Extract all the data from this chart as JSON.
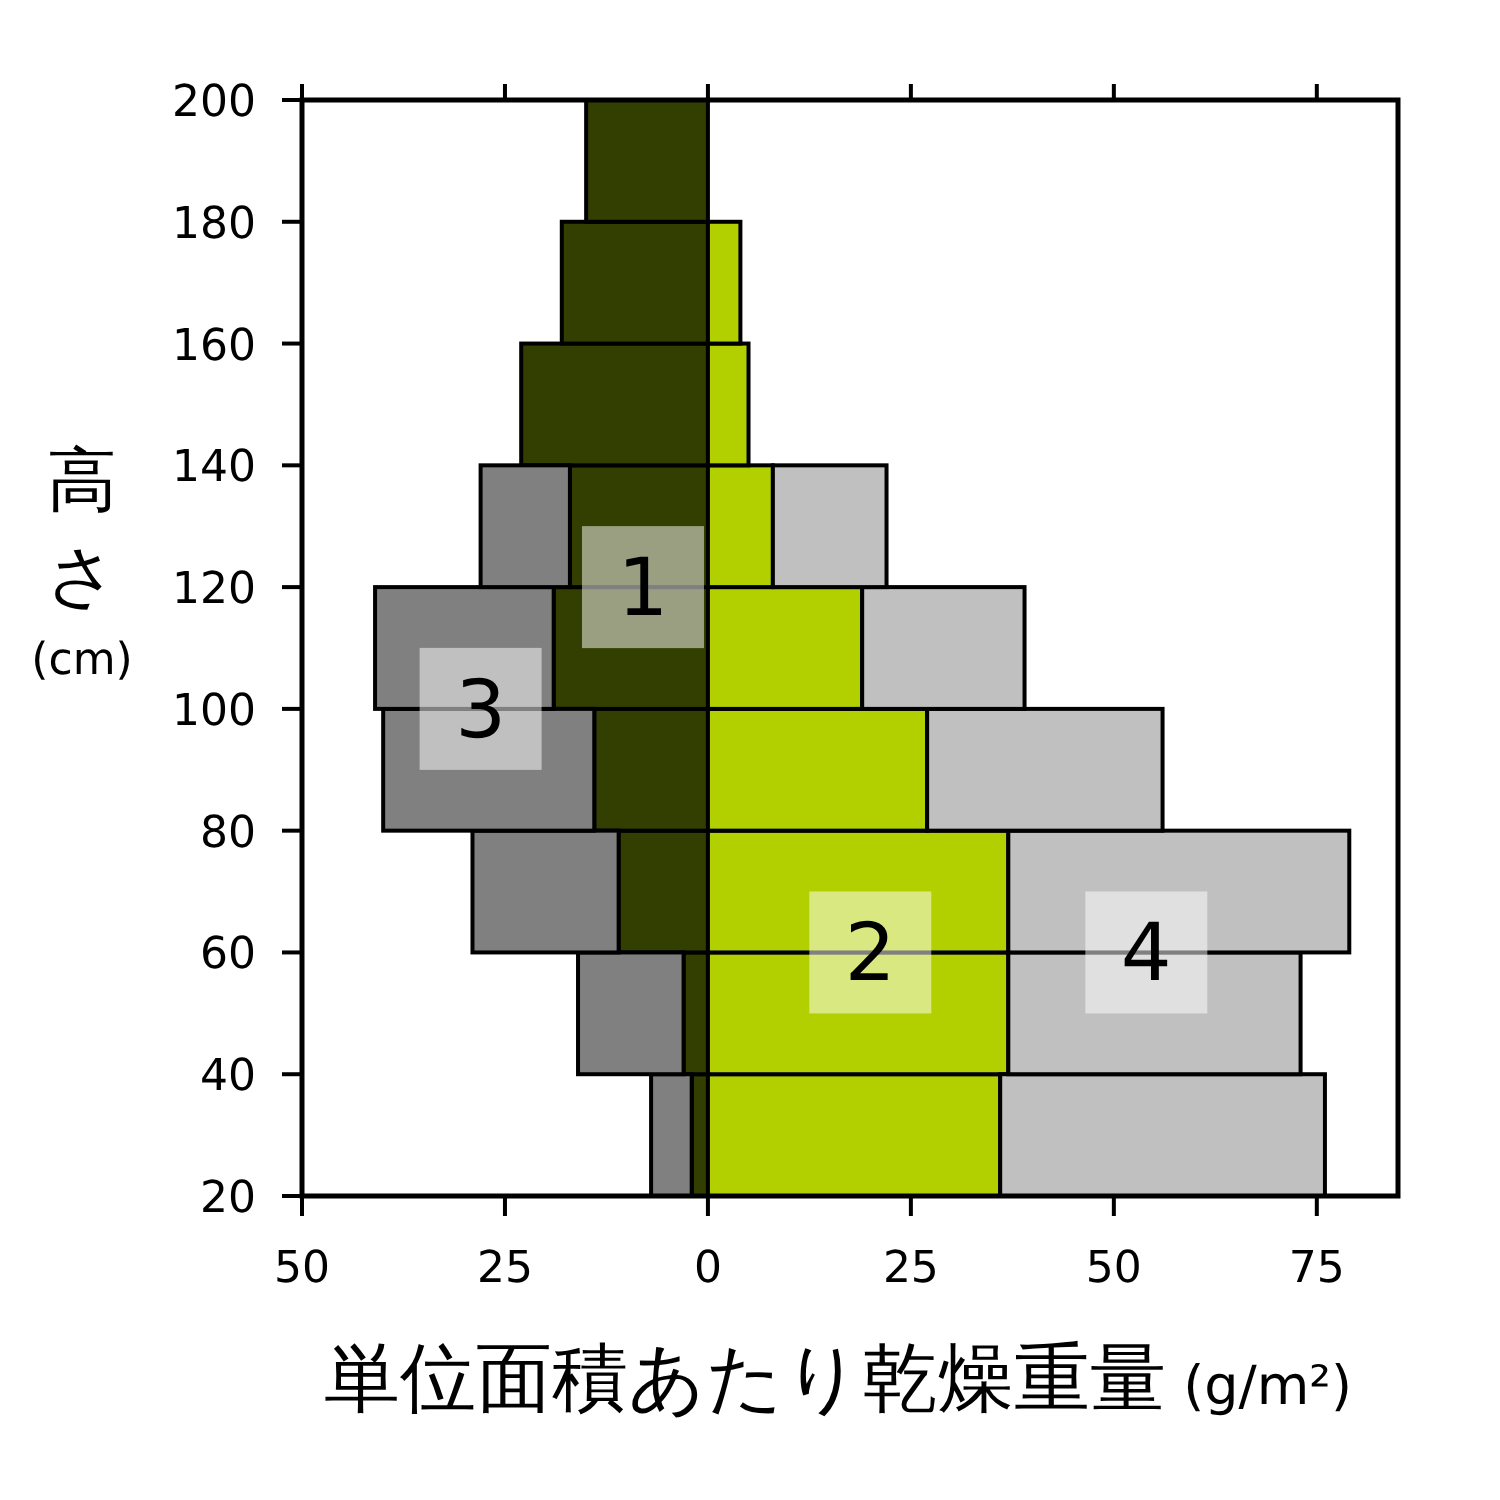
{
  "chart_data": {
    "type": "bar",
    "orientation": "horizontal",
    "stacked": true,
    "xlabel": "単位面積あたり乾燥重量 (g/m²)",
    "ylabel": "高さ (cm)",
    "x": [
      30,
      50,
      70,
      90,
      110,
      130,
      150,
      170,
      190
    ],
    "series": [
      {
        "color": "#333f00",
        "values": [
          -2,
          -3,
          -11,
          -14,
          -19,
          -17,
          -23,
          -18,
          -15
        ]
      },
      {
        "color": "#b2d000",
        "values": [
          36,
          37,
          37,
          27,
          19,
          8,
          5,
          4,
          null
        ]
      },
      {
        "color": "#808080",
        "values": [
          -5,
          -13,
          -18,
          -26,
          -22,
          -11,
          null,
          null,
          null
        ]
      },
      {
        "color": "#c0c0c0",
        "values": [
          40,
          36,
          42,
          29,
          20,
          14,
          null,
          null,
          null
        ]
      }
    ],
    "xlim": [
      -50,
      85
    ],
    "xticks": [
      {
        "value": -50,
        "label": "50"
      },
      {
        "value": -25,
        "label": "25"
      },
      0,
      25,
      50,
      75
    ],
    "ylim": [
      20,
      200
    ],
    "yticks": [
      20,
      40,
      60,
      80,
      100,
      120,
      140,
      160,
      180,
      200
    ],
    "annotations": [
      {
        "text": "1",
        "x": -8,
        "y": 120
      },
      {
        "text": "3",
        "x": -28,
        "y": 100
      },
      {
        "text": "2",
        "x": 20,
        "y": 60
      },
      {
        "text": "4",
        "x": 54,
        "y": 60
      }
    ]
  }
}
